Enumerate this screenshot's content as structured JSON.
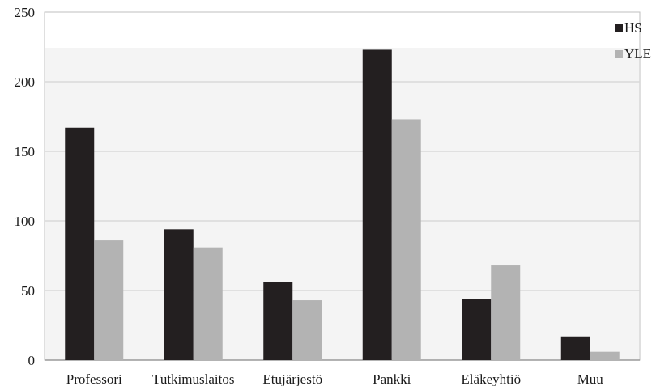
{
  "chart_data": {
    "type": "bar",
    "categories": [
      "Professori",
      "Tutkimuslaitos",
      "Etujärjestö",
      "Pankki",
      "Eläkeyhtiö",
      "Muu"
    ],
    "series": [
      {
        "name": "HS",
        "values": [
          167,
          94,
          56,
          223,
          44,
          17
        ]
      },
      {
        "name": "YLE",
        "values": [
          86,
          81,
          43,
          173,
          68,
          6
        ]
      }
    ],
    "ylim": [
      0,
      250
    ],
    "yticks": [
      0,
      50,
      100,
      150,
      200,
      250
    ],
    "grid": true,
    "legend": "top-right",
    "colors": {
      "HS": "#231f20",
      "YLE": "#b3b3b3",
      "grid": "#d9d9d9",
      "axis": "#9a9a9a"
    }
  }
}
